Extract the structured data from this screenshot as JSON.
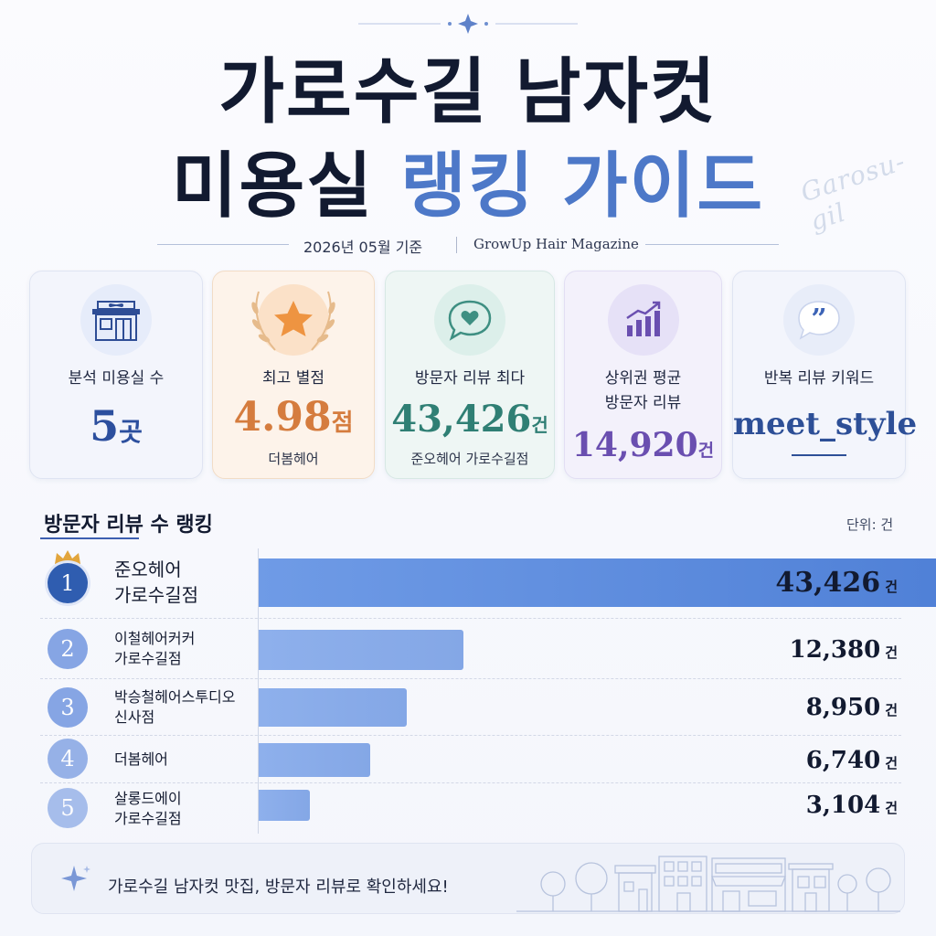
{
  "header": {
    "title_line1": "가로수길 남자컷",
    "title_line2_main": "미용실",
    "title_line2_accent": "랭킹 가이드",
    "script_word": "Garosu-gil",
    "date": "2026년 05월 기준",
    "magazine": "GrowUp Hair Magazine"
  },
  "stats": {
    "salon_count": {
      "label": "분석 미용실 수",
      "value": "5",
      "unit": "곳",
      "icon": "salon-storefront-icon"
    },
    "top_rating": {
      "label": "최고 별점",
      "value": "4.98",
      "unit": "점",
      "sub": "더봄헤어",
      "icon": "star-laurel-icon"
    },
    "max_reviews": {
      "label": "방문자 리뷰 최다",
      "value": "43,426",
      "unit": "건",
      "sub": "준오헤어 가로수길점",
      "icon": "heart-chat-icon"
    },
    "avg_reviews": {
      "label_line1": "상위권 평균",
      "label_line2": "방문자 리뷰",
      "value": "14,920",
      "unit": "건",
      "icon": "growth-chart-icon"
    },
    "keyword": {
      "label": "반복 리뷰 키워드",
      "value": "meet_style",
      "icon": "quote-bubble-icon"
    }
  },
  "ranking": {
    "title": "방문자 리뷰 수 랭킹",
    "unit_note": "단위: 건",
    "unit": "건",
    "colors": {
      "bar_top": "#4e7fd6",
      "bar": "#84a7e6",
      "rank_top": "#2f5db0",
      "rank_rest": "#86a5e4",
      "crown": "#e2a53c"
    }
  },
  "chart_data": {
    "type": "bar",
    "orientation": "horizontal",
    "title": "방문자 리뷰 수 랭킹",
    "unit": "건",
    "categories": [
      [
        "준오헤어",
        "가로수길점"
      ],
      [
        "이철헤어커커",
        "가로수길점"
      ],
      [
        "박승철헤어스투디오",
        "신사점"
      ],
      [
        "더봄헤어"
      ],
      [
        "살롱드에이",
        "가로수길점"
      ]
    ],
    "ranks": [
      "1",
      "2",
      "3",
      "4",
      "5"
    ],
    "values": [
      43426,
      12380,
      8950,
      6740,
      3104
    ],
    "value_labels": [
      "43,426",
      "12,380",
      "8,950",
      "6,740",
      "3,104"
    ],
    "xlim": [
      0,
      45800
    ]
  },
  "footer": {
    "text": "가로수길 남자컷 맛집, 방문자 리뷰로 확인하세요!",
    "icon": "sparkle-icon",
    "illustration": "street-shops-illustration"
  }
}
